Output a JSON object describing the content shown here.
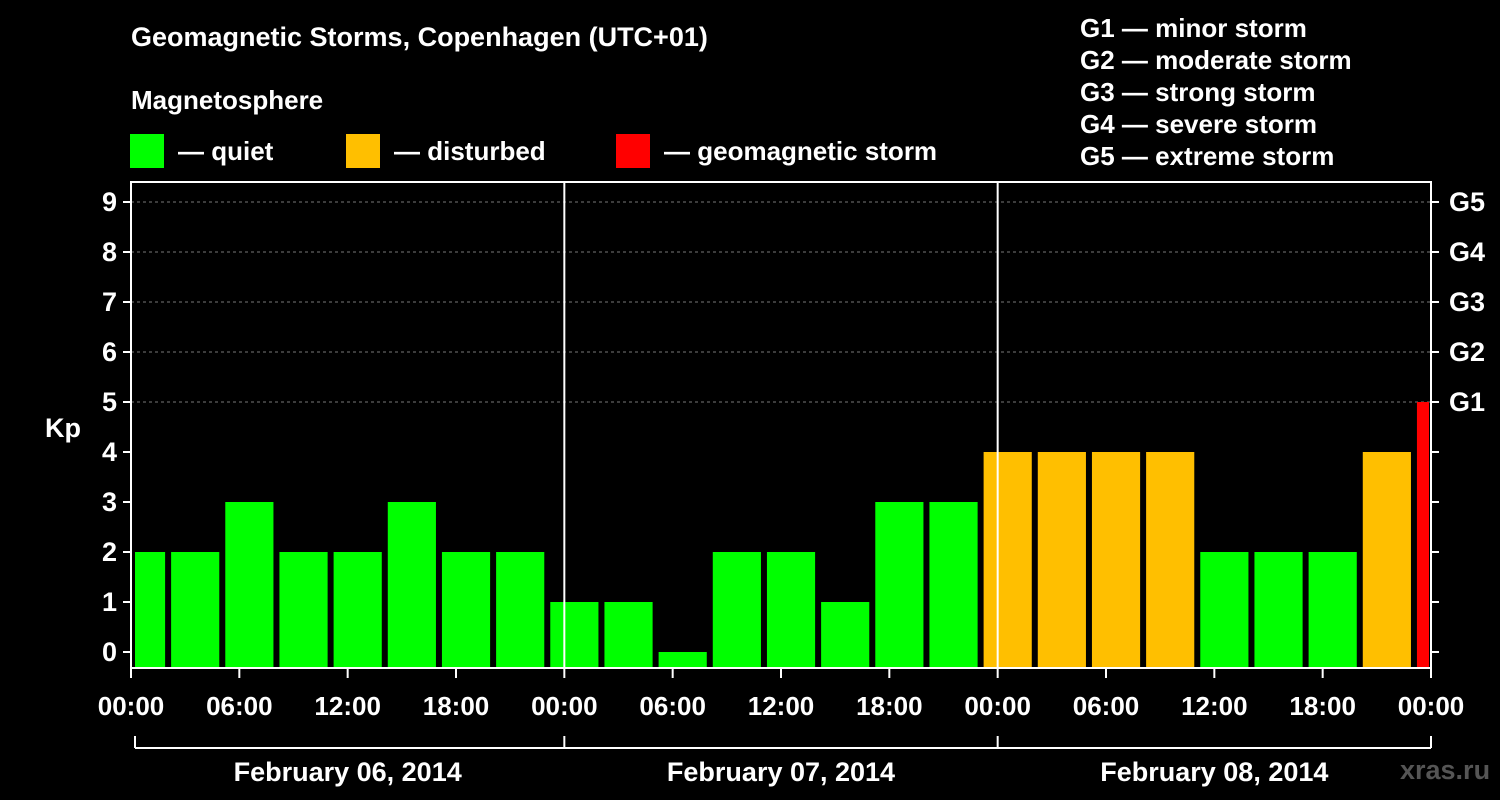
{
  "chart_data": {
    "type": "bar",
    "title": "Geomagnetic Storms, Copenhagen (UTC+01)",
    "subtitle": "Magnetosphere",
    "ylabel": "Kp",
    "ylim": [
      0,
      9
    ],
    "yticks": [
      "0",
      "1",
      "2",
      "3",
      "4",
      "5",
      "6",
      "7",
      "8",
      "9"
    ],
    "right_ticks": [
      {
        "kp": 5,
        "label": "G1"
      },
      {
        "kp": 6,
        "label": "G2"
      },
      {
        "kp": 7,
        "label": "G3"
      },
      {
        "kp": 8,
        "label": "G4"
      },
      {
        "kp": 9,
        "label": "G5"
      }
    ],
    "x_tick_labels": [
      "00:00",
      "06:00",
      "12:00",
      "18:00",
      "00:00",
      "06:00",
      "12:00",
      "18:00",
      "00:00",
      "06:00",
      "12:00",
      "18:00",
      "00:00"
    ],
    "days": [
      "February 06, 2014",
      "February 07, 2014",
      "February 08, 2014"
    ],
    "interval_hours": 3,
    "start_offset_hours": -1,
    "values": [
      2,
      2,
      3,
      2,
      2,
      3,
      2,
      2,
      1,
      1,
      0,
      2,
      2,
      1,
      3,
      3,
      4,
      4,
      4,
      4,
      2,
      2,
      2,
      4,
      5
    ],
    "status": [
      "quiet",
      "quiet",
      "quiet",
      "quiet",
      "quiet",
      "quiet",
      "quiet",
      "quiet",
      "quiet",
      "quiet",
      "quiet",
      "quiet",
      "quiet",
      "quiet",
      "quiet",
      "quiet",
      "disturbed",
      "disturbed",
      "disturbed",
      "disturbed",
      "quiet",
      "quiet",
      "quiet",
      "disturbed",
      "storm"
    ],
    "legend": [
      {
        "key": "quiet",
        "label": "— quiet",
        "color": "#00ff00"
      },
      {
        "key": "disturbed",
        "label": "— disturbed",
        "color": "#ffbf00"
      },
      {
        "key": "storm",
        "label": "— geomagnetic storm",
        "color": "#ff0000"
      }
    ],
    "storm_scale": [
      "G1 — minor storm",
      "G2 — moderate storm",
      "G3 — strong storm",
      "G4 — severe storm",
      "G5 — extreme storm"
    ],
    "grid": true
  },
  "watermark": "xras.ru"
}
